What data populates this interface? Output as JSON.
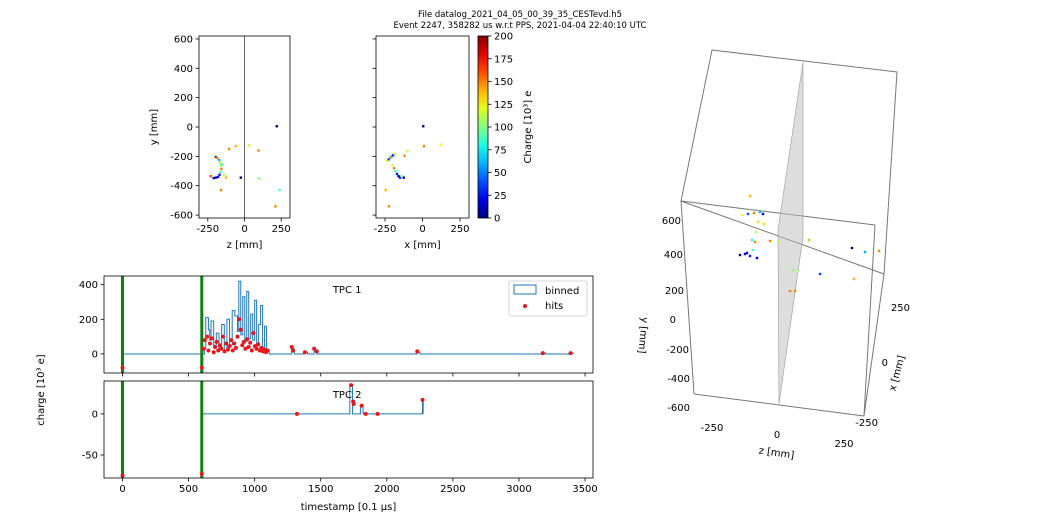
{
  "figure": {
    "title_line1": "File datalog_2021_04_05_00_39_35_CESTevd.h5",
    "title_line2": "Event 2247, 358282 us w.r.t PPS, 2021-04-04 22:40:10 UTC"
  },
  "chart_data": [
    {
      "id": "zy",
      "type": "scatter",
      "xlabel": "z [mm]",
      "ylabel": "y [mm]",
      "xlim": [
        -310,
        310
      ],
      "ylim": [
        -620,
        620
      ],
      "xticks": [
        -250,
        0,
        250
      ],
      "yticks": [
        -600,
        -400,
        -200,
        0,
        200,
        400,
        600
      ],
      "points": [
        {
          "x": -205,
          "y": -195,
          "q": 120
        },
        {
          "x": -195,
          "y": -205,
          "q": 40
        },
        {
          "x": -185,
          "y": -212,
          "q": 150
        },
        {
          "x": -172,
          "y": -225,
          "q": 60
        },
        {
          "x": -165,
          "y": -245,
          "q": 130
        },
        {
          "x": -160,
          "y": -265,
          "q": 110
        },
        {
          "x": -158,
          "y": -285,
          "q": 150
        },
        {
          "x": -162,
          "y": -305,
          "q": 90
        },
        {
          "x": -170,
          "y": -325,
          "q": 30
        },
        {
          "x": -180,
          "y": -340,
          "q": 20
        },
        {
          "x": -195,
          "y": -345,
          "q": 5
        },
        {
          "x": -210,
          "y": -348,
          "q": 10
        },
        {
          "x": -155,
          "y": -255,
          "q": 80
        },
        {
          "x": -140,
          "y": -325,
          "q": 110
        },
        {
          "x": -125,
          "y": -345,
          "q": 140
        },
        {
          "x": -160,
          "y": -430,
          "q": 150
        },
        {
          "x": -230,
          "y": -335,
          "q": 160
        },
        {
          "x": -60,
          "y": -130,
          "q": 140
        },
        {
          "x": -105,
          "y": -150,
          "q": 150
        },
        {
          "x": -25,
          "y": -345,
          "q": 0
        },
        {
          "x": 30,
          "y": -125,
          "q": 110
        },
        {
          "x": 95,
          "y": -160,
          "q": 150
        },
        {
          "x": 100,
          "y": -350,
          "q": 100
        },
        {
          "x": 210,
          "y": -540,
          "q": 150
        },
        {
          "x": 240,
          "y": -430,
          "q": 90
        },
        {
          "x": 220,
          "y": 5,
          "q": 0
        }
      ]
    },
    {
      "id": "xy",
      "type": "scatter",
      "xlabel": "x [mm]",
      "ylabel": "",
      "xlim": [
        -310,
        310
      ],
      "ylim": [
        -620,
        620
      ],
      "xticks": [
        -250,
        0,
        250
      ],
      "yticks": [
        -600,
        -400,
        -200,
        0,
        200,
        400,
        600
      ],
      "points": [
        {
          "x": -235,
          "y": -230,
          "q": 120
        },
        {
          "x": -225,
          "y": -220,
          "q": 40
        },
        {
          "x": -215,
          "y": -210,
          "q": 150
        },
        {
          "x": -205,
          "y": -200,
          "q": 60
        },
        {
          "x": -195,
          "y": -192,
          "q": 30
        },
        {
          "x": -185,
          "y": -185,
          "q": 130
        },
        {
          "x": -200,
          "y": -260,
          "q": 110
        },
        {
          "x": -190,
          "y": -280,
          "q": 150
        },
        {
          "x": -180,
          "y": -300,
          "q": 90
        },
        {
          "x": -170,
          "y": -320,
          "q": 30
        },
        {
          "x": -160,
          "y": -335,
          "q": 20
        },
        {
          "x": -150,
          "y": -345,
          "q": 5
        },
        {
          "x": -125,
          "y": -345,
          "q": 10
        },
        {
          "x": -245,
          "y": -430,
          "q": 140
        },
        {
          "x": -225,
          "y": -540,
          "q": 150
        },
        {
          "x": -120,
          "y": -195,
          "q": 150
        },
        {
          "x": -100,
          "y": -165,
          "q": 110
        },
        {
          "x": 5,
          "y": 5,
          "q": 0
        },
        {
          "x": 10,
          "y": -130,
          "q": 150
        },
        {
          "x": 120,
          "y": -120,
          "q": 120
        },
        {
          "x": -140,
          "y": -335,
          "q": 100
        }
      ]
    },
    {
      "id": "tpc1",
      "type": "line",
      "title": "TPC 1",
      "ylim": [
        -110,
        450
      ],
      "xlim": [
        -140,
        3560
      ],
      "yticks": [
        0,
        200,
        400
      ],
      "xticks": [
        0,
        500,
        1000,
        1500,
        2000,
        2500,
        3000,
        3500
      ],
      "legend": [
        "binned",
        "hits"
      ],
      "legend_position": "upper right",
      "trigger_lines": [
        0,
        600
      ],
      "binned": [
        [
          -10,
          0
        ],
        [
          20,
          0
        ],
        [
          600,
          0
        ],
        [
          620,
          30
        ],
        [
          630,
          210
        ],
        [
          650,
          140
        ],
        [
          660,
          80
        ],
        [
          670,
          190
        ],
        [
          690,
          50
        ],
        [
          710,
          120
        ],
        [
          730,
          30
        ],
        [
          750,
          170
        ],
        [
          770,
          20
        ],
        [
          790,
          200
        ],
        [
          810,
          50
        ],
        [
          830,
          250
        ],
        [
          850,
          220
        ],
        [
          870,
          130
        ],
        [
          880,
          420
        ],
        [
          895,
          110
        ],
        [
          910,
          330
        ],
        [
          925,
          70
        ],
        [
          940,
          360
        ],
        [
          955,
          90
        ],
        [
          970,
          230
        ],
        [
          985,
          80
        ],
        [
          1000,
          310
        ],
        [
          1015,
          60
        ],
        [
          1030,
          170
        ],
        [
          1045,
          280
        ],
        [
          1060,
          40
        ],
        [
          1075,
          160
        ],
        [
          1090,
          20
        ],
        [
          1110,
          0
        ],
        [
          1280,
          30
        ],
        [
          1300,
          0
        ],
        [
          1380,
          10
        ],
        [
          1400,
          0
        ],
        [
          1450,
          15
        ],
        [
          1470,
          0
        ],
        [
          2230,
          10
        ],
        [
          2250,
          0
        ],
        [
          3180,
          5
        ],
        [
          3200,
          0
        ],
        [
          3390,
          5
        ],
        [
          3410,
          0
        ]
      ],
      "hits": [
        [
          0,
          -80
        ],
        [
          600,
          -80
        ],
        [
          612,
          30
        ],
        [
          622,
          80
        ],
        [
          640,
          100
        ],
        [
          650,
          20
        ],
        [
          662,
          60
        ],
        [
          675,
          90
        ],
        [
          690,
          10
        ],
        [
          700,
          40
        ],
        [
          712,
          70
        ],
        [
          724,
          20
        ],
        [
          736,
          50
        ],
        [
          748,
          30
        ],
        [
          760,
          100
        ],
        [
          772,
          15
        ],
        [
          785,
          60
        ],
        [
          798,
          25
        ],
        [
          810,
          45
        ],
        [
          822,
          80
        ],
        [
          834,
          20
        ],
        [
          846,
          60
        ],
        [
          858,
          35
        ],
        [
          870,
          100
        ],
        [
          882,
          200
        ],
        [
          894,
          140
        ],
        [
          906,
          50
        ],
        [
          918,
          70
        ],
        [
          930,
          30
        ],
        [
          942,
          85
        ],
        [
          954,
          40
        ],
        [
          966,
          65
        ],
        [
          978,
          20
        ],
        [
          990,
          120
        ],
        [
          1002,
          45
        ],
        [
          1014,
          30
        ],
        [
          1026,
          55
        ],
        [
          1038,
          20
        ],
        [
          1050,
          35
        ],
        [
          1062,
          15
        ],
        [
          1074,
          25
        ],
        [
          1086,
          10
        ],
        [
          1098,
          20
        ],
        [
          1280,
          40
        ],
        [
          1290,
          20
        ],
        [
          1380,
          10
        ],
        [
          1450,
          30
        ],
        [
          1470,
          15
        ],
        [
          2230,
          15
        ],
        [
          3180,
          5
        ],
        [
          3390,
          5
        ]
      ]
    },
    {
      "id": "tpc2",
      "type": "line",
      "title": "TPC 2",
      "ylim": [
        -78,
        40
      ],
      "xlim": [
        -140,
        3560
      ],
      "yticks": [
        -50,
        0
      ],
      "xticks": [
        0,
        500,
        1000,
        1500,
        2000,
        2500,
        3000,
        3500
      ],
      "xticklabels": [
        "0",
        "500",
        "1000",
        "1500",
        "2000",
        "2500",
        "3000",
        "3500"
      ],
      "xlabel": "timestamp [0.1 μs]",
      "trigger_lines": [
        0,
        600
      ],
      "binned": [
        [
          600,
          0
        ],
        [
          1720,
          0
        ],
        [
          1720,
          34
        ],
        [
          1740,
          34
        ],
        [
          1740,
          0
        ],
        [
          1800,
          0
        ],
        [
          1800,
          10
        ],
        [
          1820,
          10
        ],
        [
          1820,
          0
        ],
        [
          2270,
          0
        ],
        [
          2270,
          18
        ],
        [
          2275,
          18
        ],
        [
          2275,
          0
        ]
      ],
      "hits": [
        [
          0,
          -75
        ],
        [
          600,
          -73
        ],
        [
          1320,
          0
        ],
        [
          1730,
          35
        ],
        [
          1745,
          15
        ],
        [
          1750,
          12
        ],
        [
          1810,
          10
        ],
        [
          1840,
          0
        ],
        [
          1930,
          0
        ],
        [
          2270,
          17
        ]
      ]
    }
  ],
  "shared_ylabel": "charge [10³ e]",
  "colorbar": {
    "label": "Charge [10³] e",
    "min": 0,
    "max": 200,
    "ticks": [
      0,
      25,
      50,
      75,
      100,
      125,
      150,
      175,
      200
    ]
  },
  "three_d": {
    "xlabel": "x [mm]",
    "ylabel": "y [mm]",
    "zlabel": "z [mm]",
    "z_ticks": [
      "-250",
      "0",
      "250"
    ],
    "y_ticks": [
      "-600",
      "-400",
      "-200",
      "0",
      "200",
      "400",
      "600"
    ],
    "x_ticks": [
      "-250",
      "0",
      "250"
    ]
  }
}
